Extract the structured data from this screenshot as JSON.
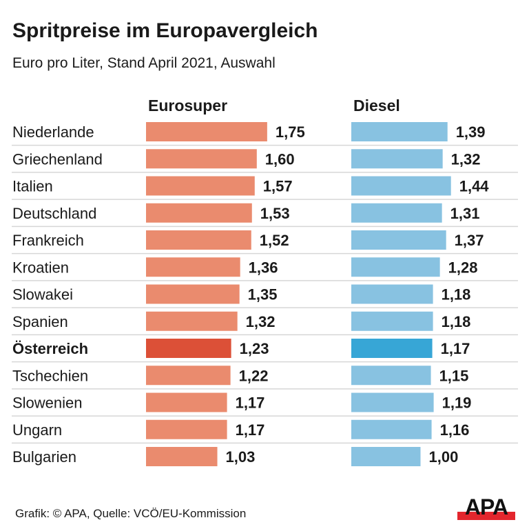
{
  "chart_data": {
    "type": "bar",
    "orientation": "horizontal",
    "title": "Spritpreise im Europavergleich",
    "subtitle": "Euro pro Liter, Stand April 2021, Auswahl",
    "categories": [
      "Niederlande",
      "Griechenland",
      "Italien",
      "Deutschland",
      "Frankreich",
      "Kroatien",
      "Slowakei",
      "Spanien",
      "Österreich",
      "Tschechien",
      "Slowenien",
      "Ungarn",
      "Bulgarien"
    ],
    "value_labels": {
      "Eurosuper": [
        "1,75",
        "1,60",
        "1,57",
        "1,53",
        "1,52",
        "1,36",
        "1,35",
        "1,32",
        "1,23",
        "1,22",
        "1,17",
        "1,17",
        "1,03"
      ],
      "Diesel": [
        "1,39",
        "1,32",
        "1,44",
        "1,31",
        "1,37",
        "1,28",
        "1,18",
        "1,18",
        "1,17",
        "1,15",
        "1,19",
        "1,16",
        "1,00"
      ]
    },
    "series": [
      {
        "name": "Eurosuper",
        "values": [
          1.75,
          1.6,
          1.57,
          1.53,
          1.52,
          1.36,
          1.35,
          1.32,
          1.23,
          1.22,
          1.17,
          1.17,
          1.03
        ],
        "color": "#ea8b6e",
        "highlight_color": "#dc5037"
      },
      {
        "name": "Diesel",
        "values": [
          1.39,
          1.32,
          1.44,
          1.31,
          1.37,
          1.28,
          1.18,
          1.18,
          1.17,
          1.15,
          1.19,
          1.16,
          1.0
        ],
        "color": "#88c2e1",
        "highlight_color": "#37a6d6"
      }
    ],
    "highlight": "Österreich",
    "grid": false,
    "legend": "column headers"
  },
  "source": "Grafik: © APA, Quelle: VCÖ/EU-Kommission",
  "logo": "APA"
}
